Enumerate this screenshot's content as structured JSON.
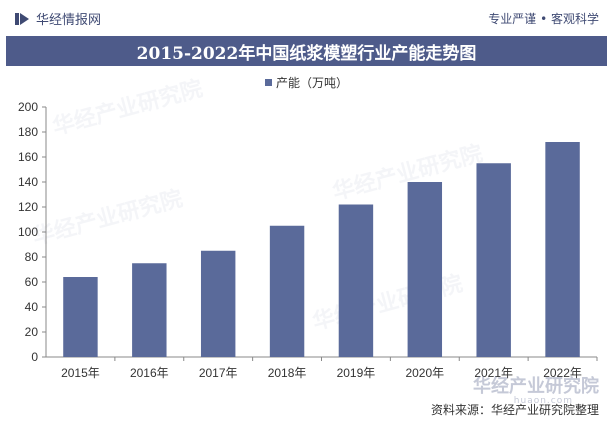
{
  "header": {
    "brand": "华经情报网",
    "slogan": "专业严谨 • 客观科学"
  },
  "chart_data": {
    "type": "bar",
    "title": "2015-2022年中国纸浆模塑行业产能走势图",
    "categories": [
      "2015年",
      "2016年",
      "2017年",
      "2018年",
      "2019年",
      "2020年",
      "2021年",
      "2022年"
    ],
    "series": [
      {
        "name": "产能（万吨）",
        "values": [
          64,
          75,
          85,
          105,
          122,
          140,
          155,
          172
        ]
      }
    ],
    "ylim": [
      0,
      200
    ],
    "yticks": [
      0,
      20,
      40,
      60,
      80,
      100,
      120,
      140,
      160,
      180,
      200
    ],
    "grid": false,
    "legend": "top-center",
    "colors": {
      "bar": "#5a6a9a",
      "title_bg": "#4e5b8a"
    }
  },
  "watermark": {
    "text": "华经产业研究院",
    "url": "huaon.com"
  },
  "source": "资料来源：华经产业研究院整理"
}
